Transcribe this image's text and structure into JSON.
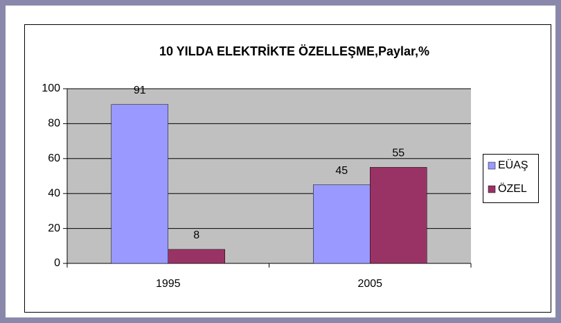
{
  "chart_data": {
    "type": "bar",
    "title": "10 YILDA ELEKTRİKTE ÖZELLEŞME,Paylar,%",
    "categories": [
      "1995",
      "2005"
    ],
    "series": [
      {
        "name": "EÜAŞ",
        "color": "#9999ff",
        "values": [
          91,
          45
        ]
      },
      {
        "name": "ÖZEL",
        "color": "#993366",
        "values": [
          8,
          55
        ]
      }
    ],
    "ylim": [
      0,
      100
    ],
    "yticks": [
      0,
      20,
      40,
      60,
      80,
      100
    ],
    "grid": true,
    "legend": "right"
  }
}
